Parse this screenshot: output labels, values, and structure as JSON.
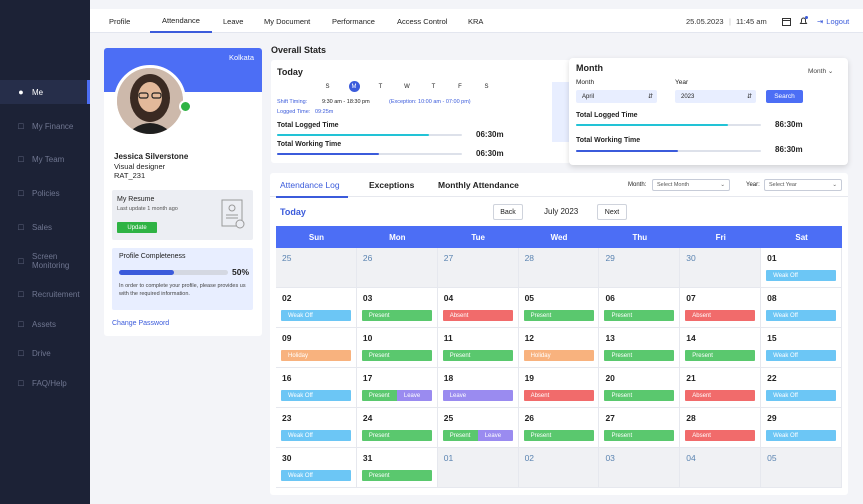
{
  "sidebar": {
    "items": [
      {
        "label": "Me",
        "icon": "user-icon",
        "active": true
      },
      {
        "label": "My Finance",
        "icon": "finance-icon"
      },
      {
        "label": "My Team",
        "icon": "team-icon"
      },
      {
        "label": "Policies",
        "icon": "document-icon"
      },
      {
        "label": "Sales",
        "icon": "sales-icon"
      },
      {
        "label": "Screen Monitoring",
        "icon": "monitor-icon"
      },
      {
        "label": "Recruitement",
        "icon": "recruitment-icon"
      },
      {
        "label": "Assets",
        "icon": "assets-icon"
      },
      {
        "label": "Drive",
        "icon": "drive-icon"
      },
      {
        "label": "FAQ/Help",
        "icon": "help-icon"
      }
    ]
  },
  "topbar": {
    "tabs": [
      "Profile",
      "Attendance",
      "Leave",
      "My Document",
      "Performance",
      "Access Control",
      "KRA"
    ],
    "active_tab": "Attendance",
    "date": "25.05.2023",
    "time": "11:45 am",
    "logout": "Logout"
  },
  "profile": {
    "location": "Kolkata",
    "name": "Jessica Silverstone",
    "role": "Visual designer",
    "id": "RAT_231",
    "resume_title": "My Resume",
    "resume_updated": "Last update 1 month ago",
    "update_button": "Update",
    "completeness_title": "Profile Completeness",
    "completeness_value": 50,
    "completeness_label": "50%",
    "completeness_note": "In order to complete your profile, please provides us with the required information.",
    "change_password": "Change Password"
  },
  "stats": {
    "title": "Overall Stats",
    "today": {
      "title": "Today",
      "weekdays": [
        "S",
        "M",
        "T",
        "W",
        "T",
        "F",
        "S"
      ],
      "active_weekday": 1,
      "shift_label": "Shift Timing:",
      "shift_value": "9:30 am - 18:30 pm",
      "exception_value": "(Exception: 10:00 am - 07:00 pm)",
      "logged_label": "Logged Time:",
      "logged_value": "09:25m",
      "total_logged_label": "Total Logged Time",
      "total_logged_value": "06:30m",
      "total_logged_progress": 0.82,
      "total_working_label": "Total Working Time",
      "total_working_value": "06:30m",
      "total_working_progress": 0.55
    },
    "month": {
      "title": "Month",
      "dropdown": "Month",
      "month_label": "Month",
      "month_value": "April",
      "year_label": "Year",
      "year_value": "2023",
      "search_button": "Search",
      "total_logged_label": "Total Logged Time",
      "total_logged_value": "86:30m",
      "total_logged_progress": 0.82,
      "total_working_label": "Total Working Time",
      "total_working_value": "86:30m",
      "total_working_progress": 0.55
    }
  },
  "attendance": {
    "tabs": [
      "Attendance Log",
      "Exceptions",
      "Monthly Attendance"
    ],
    "active_tab": "Attendance Log",
    "month_filter_label": "Month:",
    "month_filter_placeholder": "Select Month",
    "year_filter_label": "Year:",
    "year_filter_placeholder": "Select Year",
    "today_label": "Today",
    "back_button": "Back",
    "period": "July 2023",
    "next_button": "Next",
    "weekdays": [
      "Sun",
      "Mon",
      "Tue",
      "Wed",
      "Thu",
      "Fri",
      "Sat"
    ],
    "weeks": [
      [
        {
          "day": "25",
          "out": true
        },
        {
          "day": "26",
          "out": true
        },
        {
          "day": "27",
          "out": true
        },
        {
          "day": "28",
          "out": true
        },
        {
          "day": "29",
          "out": true
        },
        {
          "day": "30",
          "out": true
        },
        {
          "day": "01",
          "status": [
            [
              "weakoff",
              "Weak Off"
            ]
          ]
        }
      ],
      [
        {
          "day": "02",
          "status": [
            [
              "weakoff",
              "Weak Off"
            ]
          ]
        },
        {
          "day": "03",
          "status": [
            [
              "present",
              "Present"
            ]
          ]
        },
        {
          "day": "04",
          "status": [
            [
              "absent",
              "Absent"
            ]
          ]
        },
        {
          "day": "05",
          "status": [
            [
              "present",
              "Present"
            ]
          ]
        },
        {
          "day": "06",
          "status": [
            [
              "present",
              "Present"
            ]
          ]
        },
        {
          "day": "07",
          "status": [
            [
              "absent",
              "Absent"
            ]
          ]
        },
        {
          "day": "08",
          "status": [
            [
              "weakoff",
              "Weak Off"
            ]
          ]
        }
      ],
      [
        {
          "day": "09",
          "status": [
            [
              "holiday",
              "Holiday"
            ]
          ]
        },
        {
          "day": "10",
          "status": [
            [
              "present",
              "Present"
            ]
          ]
        },
        {
          "day": "11",
          "status": [
            [
              "present",
              "Present"
            ]
          ]
        },
        {
          "day": "12",
          "status": [
            [
              "holiday",
              "Holiday"
            ]
          ]
        },
        {
          "day": "13",
          "status": [
            [
              "present",
              "Present"
            ]
          ]
        },
        {
          "day": "14",
          "status": [
            [
              "present",
              "Present"
            ]
          ]
        },
        {
          "day": "15",
          "status": [
            [
              "weakoff",
              "Weak Off"
            ]
          ]
        }
      ],
      [
        {
          "day": "16",
          "status": [
            [
              "weakoff",
              "Weak Off"
            ]
          ]
        },
        {
          "day": "17",
          "status": [
            [
              "present",
              "Present"
            ],
            [
              "leave",
              "Leave"
            ]
          ]
        },
        {
          "day": "18",
          "status": [
            [
              "leave",
              "Leave"
            ]
          ]
        },
        {
          "day": "19",
          "status": [
            [
              "absent",
              "Absent"
            ]
          ]
        },
        {
          "day": "20",
          "status": [
            [
              "present",
              "Present"
            ]
          ]
        },
        {
          "day": "21",
          "status": [
            [
              "absent",
              "Absent"
            ]
          ]
        },
        {
          "day": "22",
          "status": [
            [
              "weakoff",
              "Weak Off"
            ]
          ]
        }
      ],
      [
        {
          "day": "23",
          "status": [
            [
              "weakoff",
              "Weak Off"
            ]
          ]
        },
        {
          "day": "24",
          "status": [
            [
              "present",
              "Present"
            ]
          ]
        },
        {
          "day": "25",
          "status": [
            [
              "present",
              "Present"
            ],
            [
              "leave",
              "Leave"
            ]
          ]
        },
        {
          "day": "26",
          "status": [
            [
              "present",
              "Present"
            ]
          ]
        },
        {
          "day": "27",
          "status": [
            [
              "present",
              "Present"
            ]
          ]
        },
        {
          "day": "28",
          "status": [
            [
              "absent",
              "Absent"
            ]
          ]
        },
        {
          "day": "29",
          "status": [
            [
              "weakoff",
              "Weak Off"
            ]
          ]
        }
      ],
      [
        {
          "day": "30",
          "status": [
            [
              "weakoff",
              "Weak Off"
            ]
          ]
        },
        {
          "day": "31",
          "status": [
            [
              "present",
              "Present"
            ]
          ]
        },
        {
          "day": "01",
          "out": true
        },
        {
          "day": "02",
          "out": true
        },
        {
          "day": "03",
          "out": true
        },
        {
          "day": "04",
          "out": true
        },
        {
          "day": "05",
          "out": true
        }
      ]
    ]
  },
  "colors": {
    "accent": "#4c6ef5",
    "sidebar": "#1c2236",
    "present": "#5ac86e",
    "absent": "#f16b6b",
    "weakoff": "#6cc6f5",
    "holiday": "#f8b27e",
    "leave": "#9a8bf0",
    "progress_cyan": "#22c3d6",
    "progress_blue": "#3b5bdb"
  }
}
